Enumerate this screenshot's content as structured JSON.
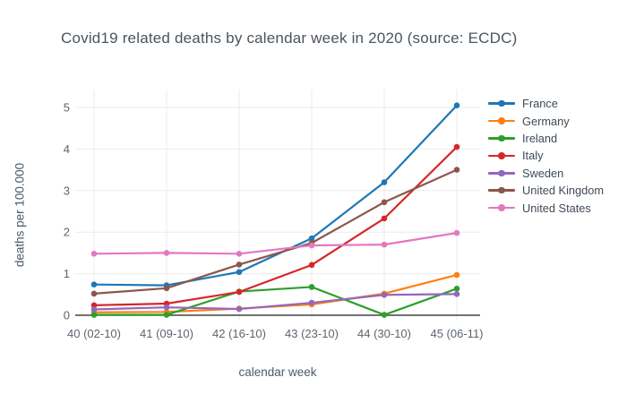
{
  "chart_data": {
    "type": "line",
    "title": "Covid19 related deaths by calendar week in 2020 (source: ECDC)",
    "xlabel": "calendar week",
    "ylabel": "deaths per 100.000",
    "categories": [
      "40 (02-10)",
      "41 (09-10)",
      "42 (16-10)",
      "43 (23-10)",
      "44 (30-10)",
      "45 (06-11)"
    ],
    "yticks": [
      0,
      1,
      2,
      3,
      4,
      5
    ],
    "ylim": [
      0,
      5.4
    ],
    "grid": true,
    "legend_position": "right",
    "marker_style": "line-with-dots",
    "colors": {
      "grid": "#ebebeb",
      "zeroline": "#424242",
      "tick_text": "#5b6570"
    },
    "series": [
      {
        "name": "France",
        "color": "#1f77b4",
        "values": [
          0.74,
          0.72,
          1.04,
          1.85,
          3.2,
          5.05
        ]
      },
      {
        "name": "Germany",
        "color": "#ff7f0e",
        "values": [
          0.07,
          0.08,
          0.16,
          0.26,
          0.52,
          0.97
        ]
      },
      {
        "name": "Ireland",
        "color": "#2ca02c",
        "values": [
          0.01,
          0.01,
          0.57,
          0.68,
          0.01,
          0.64
        ]
      },
      {
        "name": "Italy",
        "color": "#d62728",
        "values": [
          0.24,
          0.28,
          0.56,
          1.21,
          2.33,
          4.05
        ]
      },
      {
        "name": "Sweden",
        "color": "#9467bd",
        "values": [
          0.14,
          0.19,
          0.15,
          0.3,
          0.49,
          0.51
        ]
      },
      {
        "name": "United Kingdom",
        "color": "#8c564b",
        "values": [
          0.52,
          0.65,
          1.22,
          1.74,
          2.72,
          3.5
        ]
      },
      {
        "name": "United States",
        "color": "#e377c2",
        "values": [
          1.48,
          1.5,
          1.48,
          1.68,
          1.7,
          1.98
        ]
      }
    ]
  }
}
